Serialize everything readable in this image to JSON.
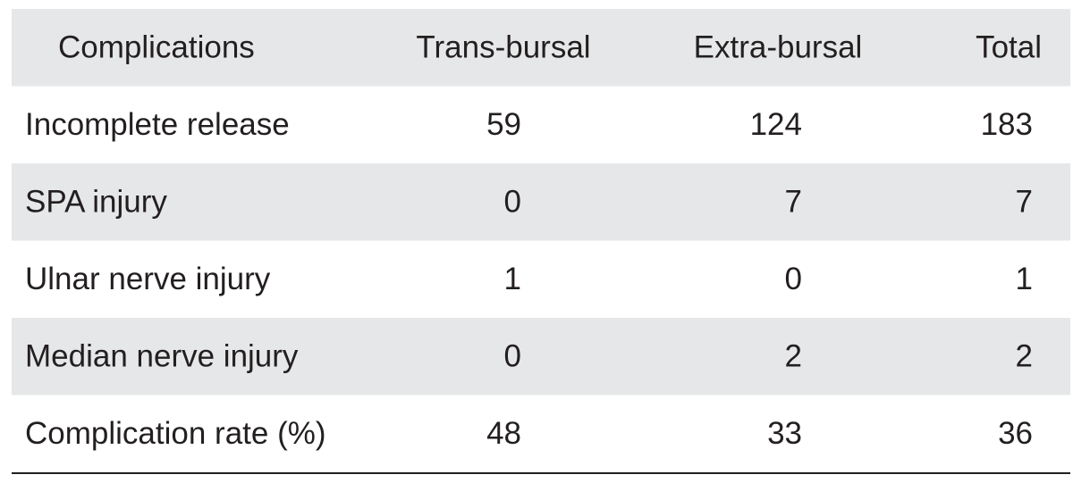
{
  "table": {
    "header": [
      "Complications",
      "Trans-bursal",
      "Extra-bursal",
      "Total"
    ],
    "rows": [
      [
        "Incomplete release",
        59,
        124,
        183
      ],
      [
        "SPA injury",
        0,
        7,
        7
      ],
      [
        "Ulnar nerve injury",
        1,
        0,
        1
      ],
      [
        "Median nerve injury",
        0,
        2,
        2
      ],
      [
        "Complication rate (%)",
        48,
        33,
        36
      ]
    ]
  }
}
